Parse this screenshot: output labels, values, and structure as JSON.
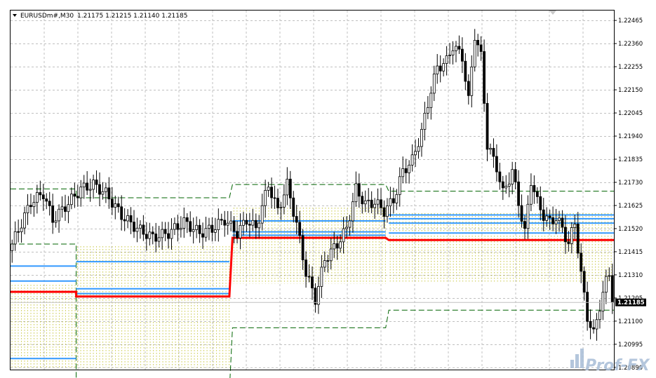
{
  "header": {
    "symbol": "EURUSDm#,M30",
    "ohlc": "1.21175 1.21215 1.21140 1.21185"
  },
  "watermark": {
    "text": "Prof-FX"
  },
  "colors": {
    "grid": "#c0c0c0",
    "candle_up": "#ffffff",
    "candle_down": "#000000",
    "pivot": "#ff0000",
    "levels": "#3399ff",
    "channel": "#006400",
    "zone": "#b5b500",
    "bid_tag": "#000000",
    "bid_line": "#c0c0c0"
  },
  "chart_data": {
    "type": "candlestick",
    "symbol": "EURUSDm#",
    "timeframe": "M30",
    "ylim": [
      1.2088,
      1.2251
    ],
    "y_ticks": [
      1.22465,
      1.2236,
      1.22255,
      1.2215,
      1.22045,
      1.2194,
      1.21835,
      1.2173,
      1.21625,
      1.2152,
      1.21415,
      1.2131,
      1.21205,
      1.211,
      1.20995,
      1.2089
    ],
    "y_tick_labels": [
      "1.22465",
      "1.22360",
      "1.22255",
      "1.22150",
      "1.22045",
      "1.21940",
      "1.21835",
      "1.21730",
      "1.21625",
      "1.21520",
      "1.21415",
      "1.21310",
      "1.21205",
      "1.21100",
      "1.20995",
      "1.20890"
    ],
    "current_price": 1.21185,
    "current_price_label": "1.21185",
    "grid": true,
    "bars": 193,
    "anchors": [
      [
        0,
        1.2145
      ],
      [
        6,
        1.2164
      ],
      [
        10,
        1.2168
      ],
      [
        13,
        1.2156
      ],
      [
        17,
        1.2162
      ],
      [
        22,
        1.217
      ],
      [
        26,
        1.2172
      ],
      [
        30,
        1.2168
      ],
      [
        35,
        1.2158
      ],
      [
        40,
        1.2152
      ],
      [
        45,
        1.2148
      ],
      [
        50,
        1.215
      ],
      [
        55,
        1.2155
      ],
      [
        60,
        1.215
      ],
      [
        64,
        1.2152
      ],
      [
        68,
        1.2156
      ],
      [
        72,
        1.215
      ],
      [
        75,
        1.2156
      ],
      [
        78,
        1.2152
      ],
      [
        82,
        1.2172
      ],
      [
        85,
        1.216
      ],
      [
        88,
        1.2172
      ],
      [
        91,
        1.2154
      ],
      [
        94,
        1.2132
      ],
      [
        97,
        1.212
      ],
      [
        100,
        1.2138
      ],
      [
        104,
        1.2145
      ],
      [
        107,
        1.2152
      ],
      [
        110,
        1.217
      ],
      [
        113,
        1.2163
      ],
      [
        116,
        1.2164
      ],
      [
        119,
        1.216
      ],
      [
        122,
        1.2165
      ],
      [
        125,
        1.2178
      ],
      [
        128,
        1.2183
      ],
      [
        131,
        1.2196
      ],
      [
        134,
        1.2215
      ],
      [
        136,
        1.2225
      ],
      [
        139,
        1.2228
      ],
      [
        141,
        1.2235
      ],
      [
        144,
        1.223
      ],
      [
        146,
        1.221
      ],
      [
        148,
        1.224
      ],
      [
        150,
        1.223
      ],
      [
        152,
        1.219
      ],
      [
        155,
        1.218
      ],
      [
        157,
        1.2168
      ],
      [
        160,
        1.2178
      ],
      [
        162,
        1.2164
      ],
      [
        164,
        1.215
      ],
      [
        166,
        1.2174
      ],
      [
        168,
        1.2164
      ],
      [
        170,
        1.2158
      ],
      [
        172,
        1.2155
      ],
      [
        174,
        1.2157
      ],
      [
        176,
        1.2152
      ],
      [
        178,
        1.2145
      ],
      [
        180,
        1.2155
      ],
      [
        182,
        1.2131
      ],
      [
        184,
        1.2112
      ],
      [
        186,
        1.2104
      ],
      [
        188,
        1.2117
      ],
      [
        190,
        1.2128
      ],
      [
        191,
        1.2132
      ],
      [
        192,
        1.21185
      ]
    ],
    "pivot": [
      [
        0,
        21,
        1.21233
      ],
      [
        21,
        70,
        1.21212
      ],
      [
        71,
        120,
        1.21478
      ],
      [
        121,
        193,
        1.21468
      ]
    ],
    "blue_levels": [
      [
        0,
        21,
        1.2135
      ],
      [
        0,
        21,
        1.21282
      ],
      [
        21,
        70,
        1.2137
      ],
      [
        21,
        70,
        1.21247
      ],
      [
        21,
        70,
        1.21225
      ],
      [
        71,
        120,
        1.21555
      ],
      [
        71,
        120,
        1.21505
      ],
      [
        71,
        120,
        1.2149
      ],
      [
        121,
        193,
        1.21582
      ],
      [
        121,
        193,
        1.21565
      ],
      [
        121,
        193,
        1.21545
      ],
      [
        121,
        193,
        1.215
      ],
      [
        0,
        21,
        1.2093
      ]
    ],
    "channel": [
      [
        0,
        21,
        1.217,
        1.2145
      ],
      [
        21,
        70,
        1.2166,
        1.2078
      ],
      [
        71,
        120,
        1.2172,
        1.2107
      ],
      [
        121,
        193,
        1.2169,
        1.2115
      ]
    ],
    "zones": [
      [
        0,
        21,
        1.21265,
        1.2089
      ],
      [
        21,
        70,
        1.2144,
        1.2089
      ],
      [
        71,
        120,
        1.21615,
        1.2127
      ],
      [
        121,
        193,
        1.2159,
        1.2128
      ]
    ]
  }
}
